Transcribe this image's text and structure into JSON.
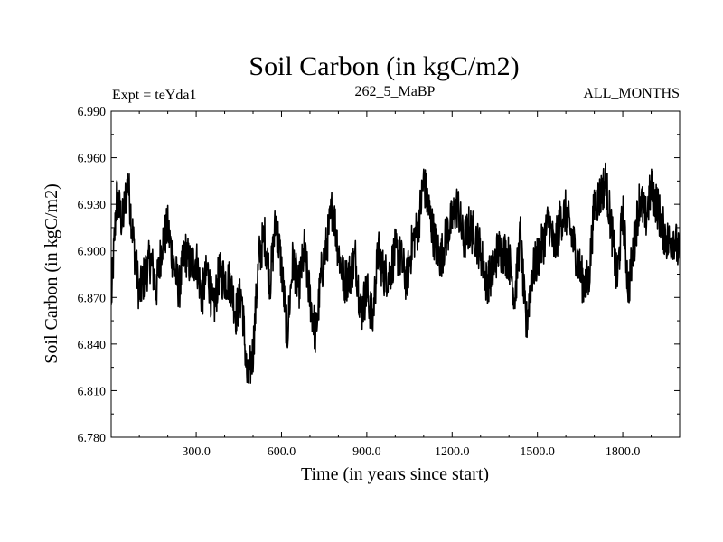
{
  "chart_data": {
    "type": "line",
    "title": "Soil Carbon (in kgC/m2)",
    "subtitle_left": "Expt = teYda1",
    "subtitle_center": "262_5_MaBP",
    "subtitle_right": "ALL_MONTHS",
    "xlabel": "Time (in years since start)",
    "ylabel": "Soil Carbon (in kgC/m2)",
    "xlim": [
      1,
      2000
    ],
    "ylim": [
      6.78,
      6.99
    ],
    "xticks": [
      300,
      600,
      900,
      1200,
      1500,
      1800
    ],
    "xtick_labels": [
      "300.0",
      "600.0",
      "900.0",
      "1200.0",
      "1500.0",
      "1800.0"
    ],
    "yticks": [
      6.78,
      6.81,
      6.84,
      6.87,
      6.9,
      6.93,
      6.96,
      6.99
    ],
    "ytick_labels": [
      "6.780",
      "6.810",
      "6.840",
      "6.870",
      "6.900",
      "6.930",
      "6.960",
      "6.990"
    ],
    "series": [
      {
        "name": "soil carbon",
        "color": "#000000",
        "x": [
          1,
          20,
          40,
          60,
          80,
          100,
          120,
          140,
          160,
          180,
          200,
          220,
          240,
          260,
          280,
          300,
          320,
          340,
          360,
          380,
          400,
          420,
          440,
          460,
          480,
          500,
          520,
          540,
          560,
          580,
          600,
          620,
          640,
          660,
          680,
          700,
          720,
          740,
          760,
          780,
          800,
          820,
          840,
          860,
          880,
          900,
          920,
          940,
          960,
          980,
          1000,
          1020,
          1040,
          1060,
          1080,
          1100,
          1120,
          1140,
          1160,
          1180,
          1200,
          1220,
          1240,
          1260,
          1280,
          1300,
          1320,
          1340,
          1360,
          1380,
          1400,
          1420,
          1440,
          1460,
          1480,
          1500,
          1520,
          1540,
          1560,
          1580,
          1600,
          1620,
          1640,
          1660,
          1680,
          1700,
          1720,
          1740,
          1760,
          1780,
          1800,
          1820,
          1840,
          1860,
          1880,
          1900,
          1920,
          1940,
          1960,
          1980,
          2000
        ],
        "values": [
          6.865,
          6.935,
          6.918,
          6.945,
          6.905,
          6.872,
          6.885,
          6.895,
          6.875,
          6.905,
          6.915,
          6.892,
          6.875,
          6.9,
          6.89,
          6.895,
          6.87,
          6.888,
          6.86,
          6.885,
          6.882,
          6.88,
          6.86,
          6.872,
          6.815,
          6.835,
          6.895,
          6.91,
          6.88,
          6.92,
          6.89,
          6.845,
          6.895,
          6.875,
          6.9,
          6.87,
          6.845,
          6.885,
          6.905,
          6.93,
          6.9,
          6.88,
          6.885,
          6.895,
          6.86,
          6.875,
          6.855,
          6.9,
          6.885,
          6.885,
          6.9,
          6.895,
          6.88,
          6.905,
          6.915,
          6.945,
          6.925,
          6.905,
          6.895,
          6.91,
          6.92,
          6.93,
          6.905,
          6.915,
          6.91,
          6.9,
          6.88,
          6.885,
          6.9,
          6.9,
          6.895,
          6.87,
          6.91,
          6.85,
          6.885,
          6.895,
          6.905,
          6.92,
          6.9,
          6.92,
          6.925,
          6.91,
          6.895,
          6.88,
          6.88,
          6.93,
          6.935,
          6.945,
          6.915,
          6.88,
          6.925,
          6.875,
          6.905,
          6.935,
          6.92,
          6.94,
          6.93,
          6.915,
          6.905,
          6.91,
          6.895
        ]
      }
    ]
  }
}
